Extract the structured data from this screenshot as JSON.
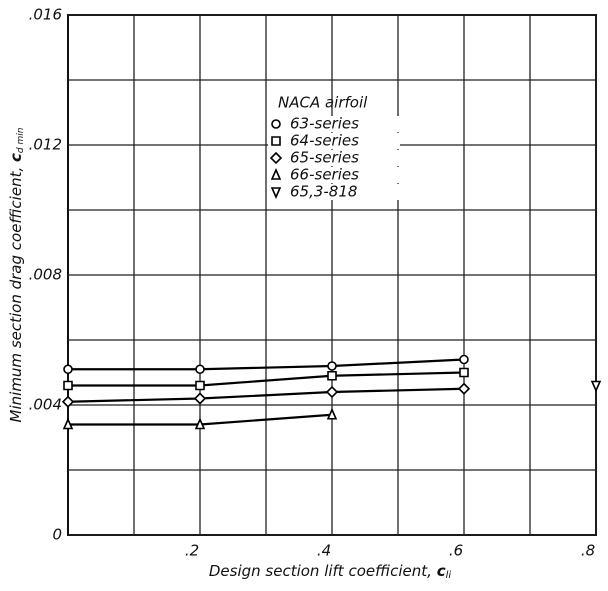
{
  "chart_data": {
    "type": "line",
    "x_label": "Design section lift coefficient,",
    "x_label_symbol": "c",
    "x_label_subscript": "li",
    "y_label": "Minimum section drag coefficient,",
    "y_label_symbol": "c",
    "y_label_subscript": "d min",
    "legend_title": "NACA airfoil",
    "x": [
      0,
      0.2,
      0.4,
      0.6,
      0.8
    ],
    "series": [
      {
        "name": "63-series",
        "color": "#000000",
        "marker": "circle",
        "values": [
          0.0051,
          0.0051,
          0.0052,
          0.0054,
          null
        ]
      },
      {
        "name": "64-series",
        "color": "#000000",
        "marker": "square",
        "values": [
          0.0046,
          0.0046,
          0.0049,
          0.005,
          null
        ]
      },
      {
        "name": "65-series",
        "color": "#000000",
        "marker": "diamond",
        "values": [
          0.0041,
          0.0042,
          0.0044,
          0.0045,
          null
        ]
      },
      {
        "name": "66-series",
        "color": "#000000",
        "marker": "triangle",
        "values": [
          0.0034,
          0.0034,
          0.0037,
          null,
          null
        ]
      },
      {
        "name": "65,3-818",
        "color": "#000000",
        "marker": "triangle-down",
        "values": [
          null,
          null,
          null,
          null,
          0.0046
        ]
      }
    ],
    "xlim": [
      0,
      0.8
    ],
    "ylim": [
      0,
      0.016
    ],
    "xticks": [
      {
        "value": 0.2,
        "label": ".2"
      },
      {
        "value": 0.4,
        "label": ".4"
      },
      {
        "value": 0.6,
        "label": ".6"
      },
      {
        "value": 0.8,
        "label": ".8"
      }
    ],
    "xminorticks": [
      0.1,
      0.3,
      0.5,
      0.7
    ],
    "yticks": [
      0,
      {
        "value": 0.004,
        "label": ".004"
      },
      {
        "value": 0.008,
        "label": ".008"
      },
      {
        "value": 0.012,
        "label": ".012"
      },
      {
        "value": 0.016,
        "label": ".016"
      }
    ],
    "yminorticks": [
      0.002,
      0.006,
      0.01,
      0.014
    ],
    "grid": true
  }
}
